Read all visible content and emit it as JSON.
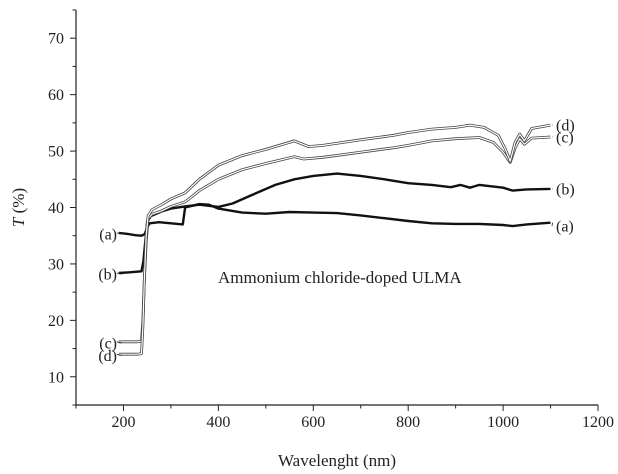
{
  "chart_data": {
    "type": "line",
    "title": "",
    "xlabel": "Wavelenght (nm)",
    "ylabel_italic": "T",
    "ylabel_rest": " (%)",
    "xlim": [
      100,
      1200
    ],
    "ylim": [
      5,
      75
    ],
    "xticks": [
      200,
      400,
      600,
      800,
      1000,
      1200
    ],
    "yticks": [
      10,
      20,
      30,
      40,
      50,
      60,
      70
    ],
    "annotation": "Ammonium chloride-doped ULMA",
    "grid": false,
    "series": [
      {
        "name": "(a)",
        "color": "#111111",
        "style": "thick",
        "left_label_y": 35.3,
        "right_label_y": 36.7,
        "points": [
          [
            190,
            35.5
          ],
          [
            210,
            35.3
          ],
          [
            225,
            35.1
          ],
          [
            238,
            35.0
          ],
          [
            245,
            35.3
          ],
          [
            250,
            36.5
          ],
          [
            255,
            37.2
          ],
          [
            275,
            37.4
          ],
          [
            300,
            37.2
          ],
          [
            325,
            37.0
          ],
          [
            330,
            40.0
          ],
          [
            360,
            40.6
          ],
          [
            380,
            40.5
          ],
          [
            400,
            39.8
          ],
          [
            450,
            39.1
          ],
          [
            500,
            38.9
          ],
          [
            550,
            39.2
          ],
          [
            600,
            39.1
          ],
          [
            650,
            39.0
          ],
          [
            700,
            38.6
          ],
          [
            750,
            38.1
          ],
          [
            800,
            37.6
          ],
          [
            850,
            37.2
          ],
          [
            900,
            37.1
          ],
          [
            950,
            37.1
          ],
          [
            1000,
            36.9
          ],
          [
            1020,
            36.7
          ],
          [
            1050,
            37.0
          ],
          [
            1100,
            37.3
          ]
        ]
      },
      {
        "name": "(b)",
        "color": "#111111",
        "style": "thick",
        "left_label_y": 28.2,
        "right_label_y": 43.3,
        "points": [
          [
            190,
            28.4
          ],
          [
            210,
            28.5
          ],
          [
            225,
            28.6
          ],
          [
            238,
            28.7
          ],
          [
            242,
            30.5
          ],
          [
            246,
            34.0
          ],
          [
            250,
            37.5
          ],
          [
            258,
            38.5
          ],
          [
            280,
            39.3
          ],
          [
            300,
            39.8
          ],
          [
            330,
            40.2
          ],
          [
            360,
            40.5
          ],
          [
            400,
            40.1
          ],
          [
            430,
            40.7
          ],
          [
            470,
            42.2
          ],
          [
            520,
            44.0
          ],
          [
            560,
            45.0
          ],
          [
            600,
            45.6
          ],
          [
            650,
            46.0
          ],
          [
            700,
            45.6
          ],
          [
            750,
            45.0
          ],
          [
            800,
            44.3
          ],
          [
            850,
            44.0
          ],
          [
            890,
            43.6
          ],
          [
            910,
            44.0
          ],
          [
            930,
            43.5
          ],
          [
            950,
            44.0
          ],
          [
            1000,
            43.5
          ],
          [
            1020,
            43.0
          ],
          [
            1050,
            43.2
          ],
          [
            1100,
            43.3
          ]
        ]
      },
      {
        "name": "(c)",
        "color": "#444444",
        "style": "thin",
        "left_label_y": 16.0,
        "right_label_y": 52.5,
        "points": [
          [
            190,
            16.2
          ],
          [
            210,
            16.2
          ],
          [
            230,
            16.2
          ],
          [
            238,
            16.3
          ],
          [
            241,
            20.0
          ],
          [
            244,
            27.0
          ],
          [
            248,
            34.0
          ],
          [
            252,
            38.0
          ],
          [
            260,
            38.8
          ],
          [
            280,
            39.4
          ],
          [
            300,
            40.2
          ],
          [
            330,
            41.0
          ],
          [
            360,
            43.0
          ],
          [
            400,
            45.0
          ],
          [
            450,
            46.7
          ],
          [
            500,
            47.8
          ],
          [
            560,
            49.0
          ],
          [
            580,
            48.6
          ],
          [
            620,
            48.9
          ],
          [
            700,
            49.8
          ],
          [
            770,
            50.6
          ],
          [
            800,
            51.0
          ],
          [
            850,
            51.8
          ],
          [
            900,
            52.2
          ],
          [
            950,
            52.4
          ],
          [
            980,
            51.5
          ],
          [
            1000,
            49.8
          ],
          [
            1015,
            48.0
          ],
          [
            1025,
            50.5
          ],
          [
            1035,
            52.2
          ],
          [
            1045,
            51.2
          ],
          [
            1060,
            52.3
          ],
          [
            1100,
            52.5
          ]
        ]
      },
      {
        "name": "(d)",
        "color": "#444444",
        "style": "thin",
        "left_label_y": 13.8,
        "right_label_y": 54.6,
        "points": [
          [
            190,
            14.0
          ],
          [
            210,
            14.0
          ],
          [
            230,
            14.0
          ],
          [
            238,
            14.1
          ],
          [
            241,
            19.0
          ],
          [
            244,
            27.0
          ],
          [
            248,
            35.0
          ],
          [
            252,
            38.5
          ],
          [
            260,
            39.6
          ],
          [
            280,
            40.5
          ],
          [
            300,
            41.5
          ],
          [
            330,
            42.6
          ],
          [
            360,
            45.0
          ],
          [
            400,
            47.5
          ],
          [
            450,
            49.2
          ],
          [
            500,
            50.3
          ],
          [
            560,
            51.8
          ],
          [
            590,
            50.8
          ],
          [
            620,
            51.0
          ],
          [
            700,
            52.0
          ],
          [
            770,
            52.8
          ],
          [
            800,
            53.3
          ],
          [
            850,
            53.9
          ],
          [
            900,
            54.2
          ],
          [
            930,
            54.6
          ],
          [
            960,
            54.2
          ],
          [
            990,
            52.8
          ],
          [
            1005,
            50.3
          ],
          [
            1015,
            48.2
          ],
          [
            1025,
            51.5
          ],
          [
            1035,
            53.0
          ],
          [
            1045,
            51.8
          ],
          [
            1060,
            54.0
          ],
          [
            1100,
            54.6
          ]
        ]
      }
    ]
  }
}
